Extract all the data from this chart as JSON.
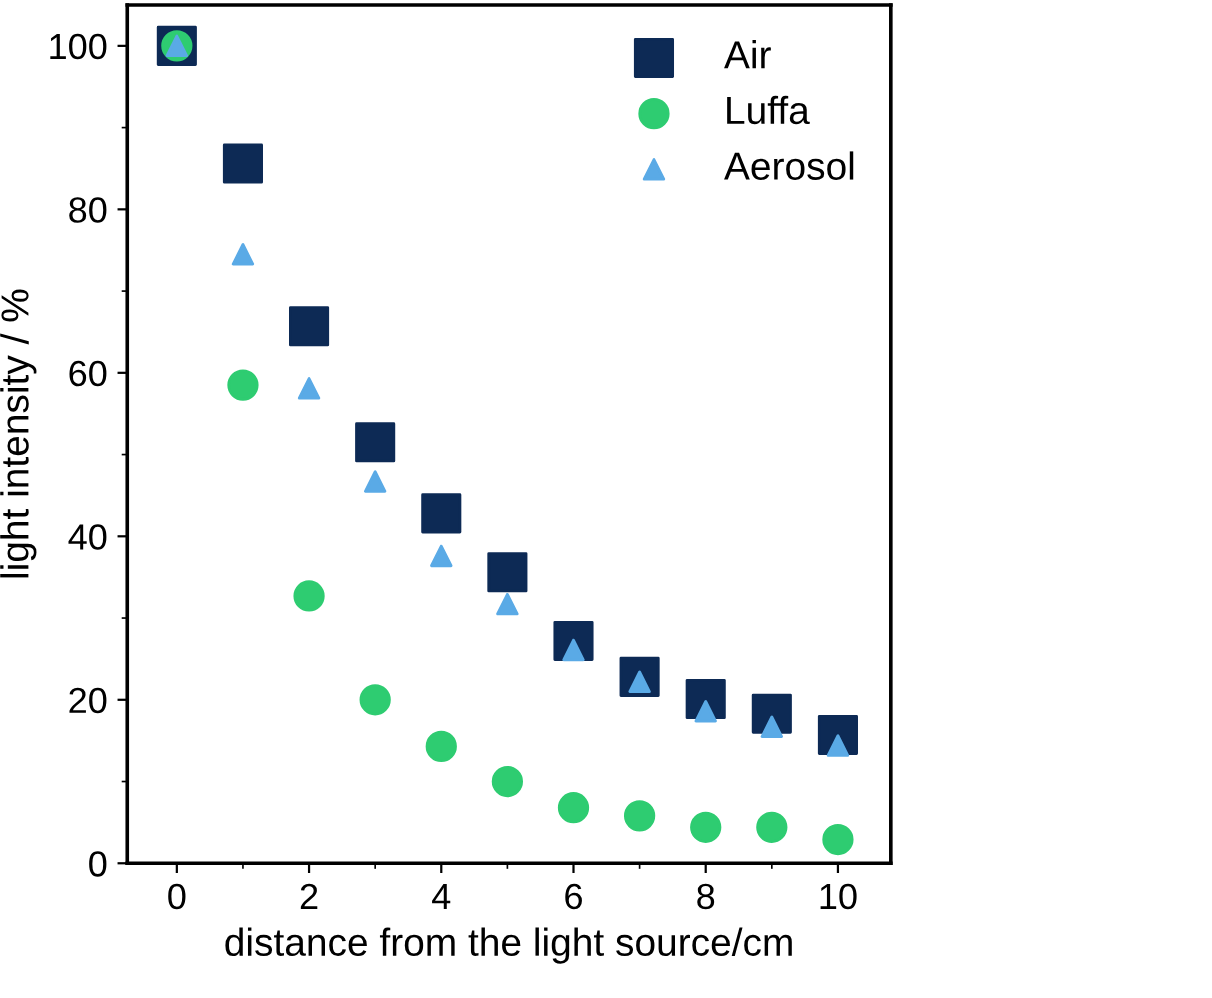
{
  "chart_data": {
    "type": "scatter",
    "xlabel": "distance from the light source/cm",
    "ylabel": "light intensity / %",
    "x": [
      0,
      1,
      2,
      3,
      4,
      5,
      6,
      7,
      8,
      9,
      10
    ],
    "series": [
      {
        "name": "Air",
        "color": "#0d2a55",
        "marker": "square",
        "values": [
          100,
          85.6,
          65.7,
          51.5,
          42.8,
          35.6,
          27.2,
          22.8,
          20.1,
          18.3,
          15.7
        ]
      },
      {
        "name": "Luffa",
        "color": "#2ecc71",
        "marker": "circle",
        "values": [
          100,
          58.5,
          32.7,
          20.0,
          14.3,
          10.0,
          6.8,
          5.8,
          4.4,
          4.4,
          2.9
        ]
      },
      {
        "name": "Aerosol",
        "color": "#5aaae6",
        "marker": "triangle",
        "values": [
          100,
          74.5,
          58.1,
          46.7,
          37.6,
          31.7,
          26.1,
          22.2,
          18.6,
          16.7,
          14.4
        ]
      }
    ],
    "xlim": [
      -0.75,
      10.8
    ],
    "xticks": [
      0,
      2,
      4,
      6,
      8,
      10
    ],
    "ylim": [
      0,
      105
    ],
    "yticks": [
      0,
      20,
      40,
      60,
      80,
      100
    ],
    "grid": false,
    "legend": "top right"
  }
}
